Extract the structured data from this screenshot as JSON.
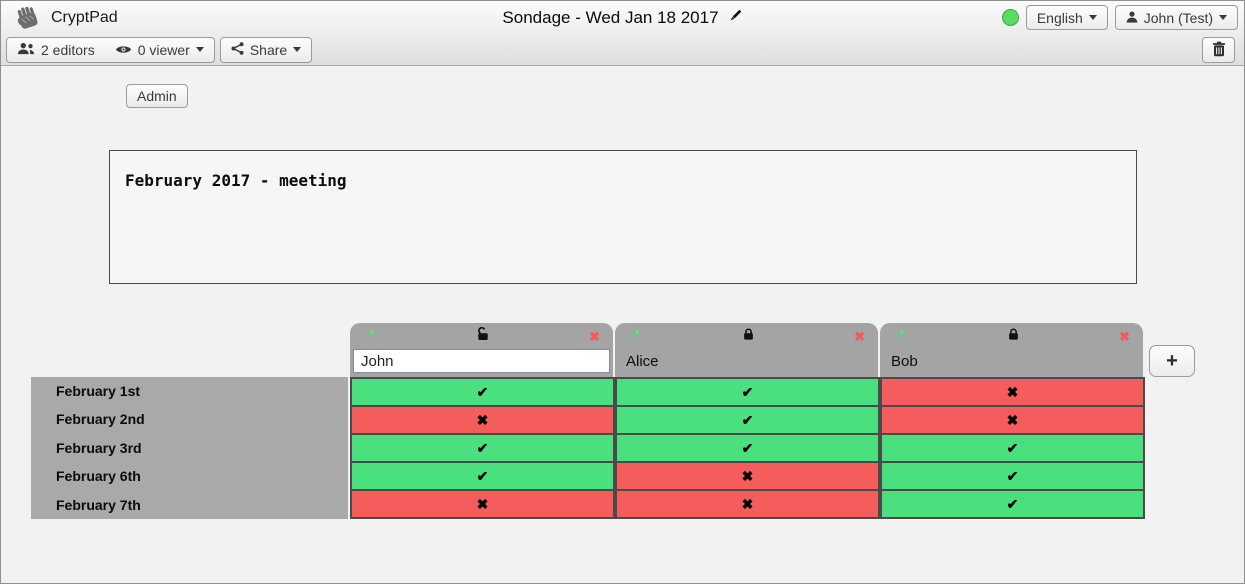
{
  "window": {
    "app_name": "CryptPad",
    "doc_title": "Sondage - Wed Jan 18 2017"
  },
  "toolbar": {
    "editors_label": "2 editors",
    "viewers_label": "0 viewer",
    "share_label": "Share",
    "language_label": "English",
    "user_label": "John (Test)",
    "icons": [
      "users-icon",
      "eye-icon",
      "share-icon",
      "person-icon",
      "trash-icon",
      "edit-title-pencil-icon",
      "connection-status-dot"
    ]
  },
  "admin_label": "Admin",
  "description_text": "February 2017 - meeting",
  "poll": {
    "columns": [
      {
        "name": "John",
        "editable": true,
        "locked": false
      },
      {
        "name": "Alice",
        "editable": false,
        "locked": true
      },
      {
        "name": "Bob",
        "editable": false,
        "locked": true
      }
    ],
    "rows": [
      {
        "label": "February 1st",
        "votes": [
          "yes",
          "yes",
          "no"
        ]
      },
      {
        "label": "February 2nd",
        "votes": [
          "no",
          "yes",
          "no"
        ]
      },
      {
        "label": "February 3rd",
        "votes": [
          "yes",
          "yes",
          "yes"
        ]
      },
      {
        "label": "February 6th",
        "votes": [
          "yes",
          "no",
          "yes"
        ]
      },
      {
        "label": "February 7th",
        "votes": [
          "no",
          "no",
          "yes"
        ]
      }
    ],
    "add_column_label": "+",
    "symbols": {
      "yes": "✔",
      "no": "✖"
    },
    "colors": {
      "yes_bg": "#4ae07e",
      "no_bg": "#f55c5c",
      "cell_border": "#4a4a4a",
      "tab_bg": "#a4a4a4",
      "label_bg": "#a9a9a9",
      "edit_pencil": "#56d574",
      "remove_x": "#f25c5c",
      "status_dot": "#55e15f"
    },
    "tab_icon_names": [
      "edit-pencil-icon",
      "padlock-icon",
      "remove-column-icon"
    ]
  }
}
